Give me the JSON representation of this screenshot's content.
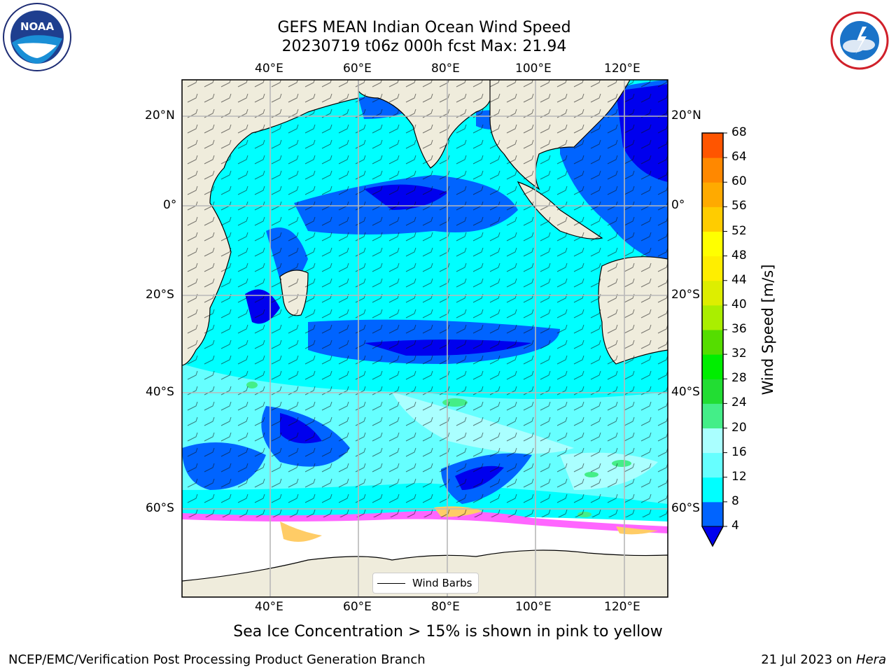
{
  "header": {
    "title_line1": "GEFS MEAN Indian Ocean Wind Speed",
    "title_line2": "20230719 t06z 000h fcst   Max: 21.94"
  },
  "logos": {
    "left": "noaa-logo",
    "right": "national-weather-service-logo"
  },
  "axes": {
    "lon_ticks": [
      "40°E",
      "60°E",
      "80°E",
      "100°E",
      "120°E"
    ],
    "lat_ticks_left": [
      "20°N",
      "0°",
      "20°S",
      "40°S",
      "60°S"
    ],
    "lat_ticks_right": [
      "20°N",
      "0°",
      "20°S",
      "40°S",
      "60°S"
    ]
  },
  "map": {
    "region": "Indian Ocean",
    "field": "Wind Speed",
    "land_color": "#efecdc",
    "ice_color_low": "#ff66ff",
    "ice_color_high": "#ffff66",
    "legend_label": "Wind Barbs"
  },
  "colorbar": {
    "title": "Wind Speed [m/s]",
    "levels": [
      4,
      8,
      12,
      16,
      20,
      24,
      28,
      32,
      36,
      40,
      44,
      48,
      52,
      56,
      60,
      64,
      68
    ],
    "colors": [
      "#0064ff",
      "#00ffff",
      "#66ffff",
      "#aaffff",
      "#44ee88",
      "#22dd33",
      "#00ee00",
      "#55dd00",
      "#aaee00",
      "#ddee00",
      "#ffee00",
      "#ffff00",
      "#ffcc00",
      "#ffaa00",
      "#ff8800",
      "#ff5500",
      "#ff2200"
    ],
    "under_color": "#0000ee"
  },
  "footer": {
    "note": "Sea Ice Concentration > 15% is shown in pink to yellow",
    "left": "NCEP/EMC/Verification Post Processing Product Generation Branch",
    "right_date": "21 Jul 2023 on ",
    "right_host": "Hera"
  }
}
